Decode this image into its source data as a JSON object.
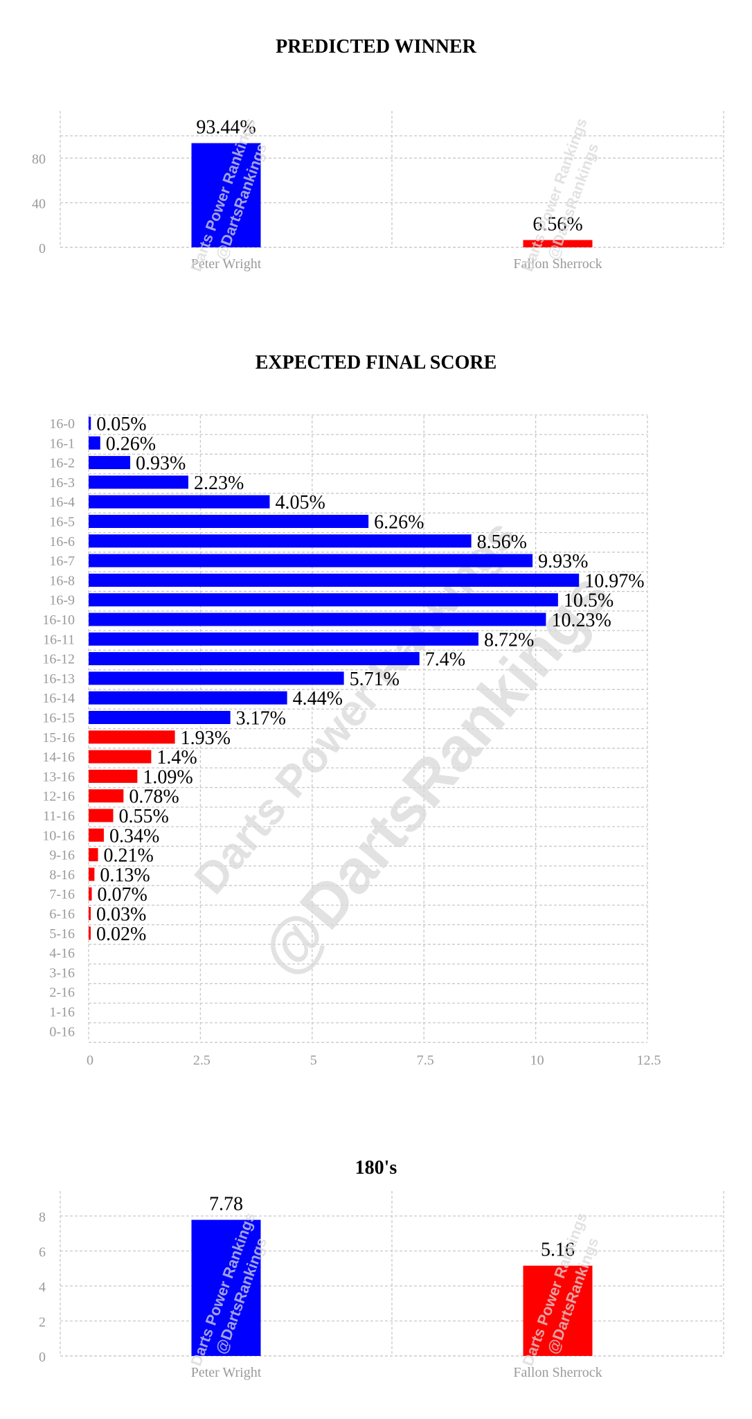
{
  "colors": {
    "player1": "#0000ff",
    "player2": "#ff0000",
    "grid": "#c8c8c8",
    "tick": "#9a9a9a"
  },
  "watermark": {
    "line1": "Darts Power Rankings",
    "line2": "@DartsRankings",
    "big": "@DartsRankings"
  },
  "chart_data": [
    {
      "type": "bar",
      "title": "PREDICTED WINNER",
      "categories": [
        "Peter Wright",
        "Fallon Sherrock"
      ],
      "values": [
        93.44,
        6.56
      ],
      "value_labels": [
        "93.44%",
        "6.56%"
      ],
      "yticks": [
        0,
        40,
        80
      ],
      "ylim": [
        0,
        100
      ],
      "grid": true
    },
    {
      "type": "bar",
      "orientation": "horizontal",
      "title": "EXPECTED FINAL SCORE",
      "categories": [
        "16-0",
        "16-1",
        "16-2",
        "16-3",
        "16-4",
        "16-5",
        "16-6",
        "16-7",
        "16-8",
        "16-9",
        "16-10",
        "16-11",
        "16-12",
        "16-13",
        "16-14",
        "16-15",
        "15-16",
        "14-16",
        "13-16",
        "12-16",
        "11-16",
        "10-16",
        "9-16",
        "8-16",
        "7-16",
        "6-16",
        "5-16",
        "4-16",
        "3-16",
        "2-16",
        "1-16",
        "0-16"
      ],
      "values": [
        0.05,
        0.26,
        0.93,
        2.23,
        4.05,
        6.26,
        8.56,
        9.93,
        10.97,
        10.5,
        10.23,
        8.72,
        7.4,
        5.71,
        4.44,
        3.17,
        1.93,
        1.4,
        1.09,
        0.78,
        0.55,
        0.34,
        0.21,
        0.13,
        0.07,
        0.03,
        0.02,
        0,
        0,
        0,
        0,
        0
      ],
      "value_labels": [
        "0.05%",
        "0.26%",
        "0.93%",
        "2.23%",
        "4.05%",
        "6.26%",
        "8.56%",
        "9.93%",
        "10.97%",
        "10.5%",
        "10.23%",
        "8.72%",
        "7.4%",
        "5.71%",
        "4.44%",
        "3.17%",
        "1.93%",
        "1.4%",
        "1.09%",
        "0.78%",
        "0.55%",
        "0.34%",
        "0.21%",
        "0.13%",
        "0.07%",
        "0.03%",
        "0.02%",
        "",
        "",
        "",
        "",
        ""
      ],
      "xticks": [
        0,
        2.5,
        5,
        7.5,
        10,
        12.5
      ],
      "xlim": [
        0,
        12.5
      ],
      "grid": true
    },
    {
      "type": "bar",
      "title": "180's",
      "categories": [
        "Peter Wright",
        "Fallon Sherrock"
      ],
      "values": [
        7.78,
        5.16
      ],
      "value_labels": [
        "7.78",
        "5.16"
      ],
      "yticks": [
        0,
        2,
        4,
        6,
        8
      ],
      "ylim": [
        0,
        8
      ],
      "grid": true
    }
  ]
}
